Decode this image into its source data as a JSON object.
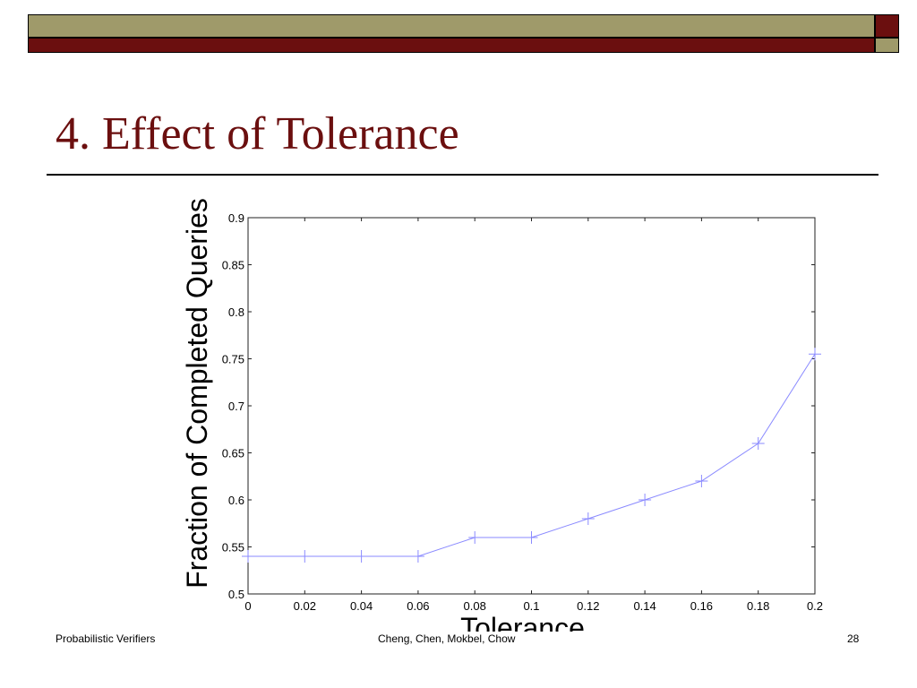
{
  "theme": {
    "band_color": "#9f9a6a",
    "stripe_color": "#6b0f0f",
    "title_color": "#6b0f0f",
    "series_color": "#8a8aff"
  },
  "slide": {
    "title": "4. Effect of Tolerance"
  },
  "footer": {
    "left": "Probabilistic Verifiers",
    "center": "Cheng, Chen, Mokbel, Chow",
    "page": "28"
  },
  "chart_data": {
    "type": "line",
    "title": "",
    "xlabel": "Tolerance",
    "ylabel": "Fraction of Completed Queries",
    "x": [
      0,
      0.02,
      0.04,
      0.06,
      0.08,
      0.1,
      0.12,
      0.14,
      0.16,
      0.18,
      0.2
    ],
    "series": [
      {
        "values": [
          0.54,
          0.54,
          0.54,
          0.54,
          0.56,
          0.56,
          0.58,
          0.6,
          0.62,
          0.66,
          0.755
        ]
      }
    ],
    "xlim": [
      0,
      0.2
    ],
    "ylim": [
      0.5,
      0.9
    ],
    "xticks": [
      "0",
      "0.02",
      "0.04",
      "0.06",
      "0.08",
      "0.1",
      "0.12",
      "0.14",
      "0.16",
      "0.18",
      "0.2"
    ],
    "yticks": [
      "0.5",
      "0.55",
      "0.6",
      "0.65",
      "0.7",
      "0.75",
      "0.8",
      "0.85",
      "0.9"
    ],
    "marker": "plus",
    "grid": false,
    "legend": "none"
  }
}
